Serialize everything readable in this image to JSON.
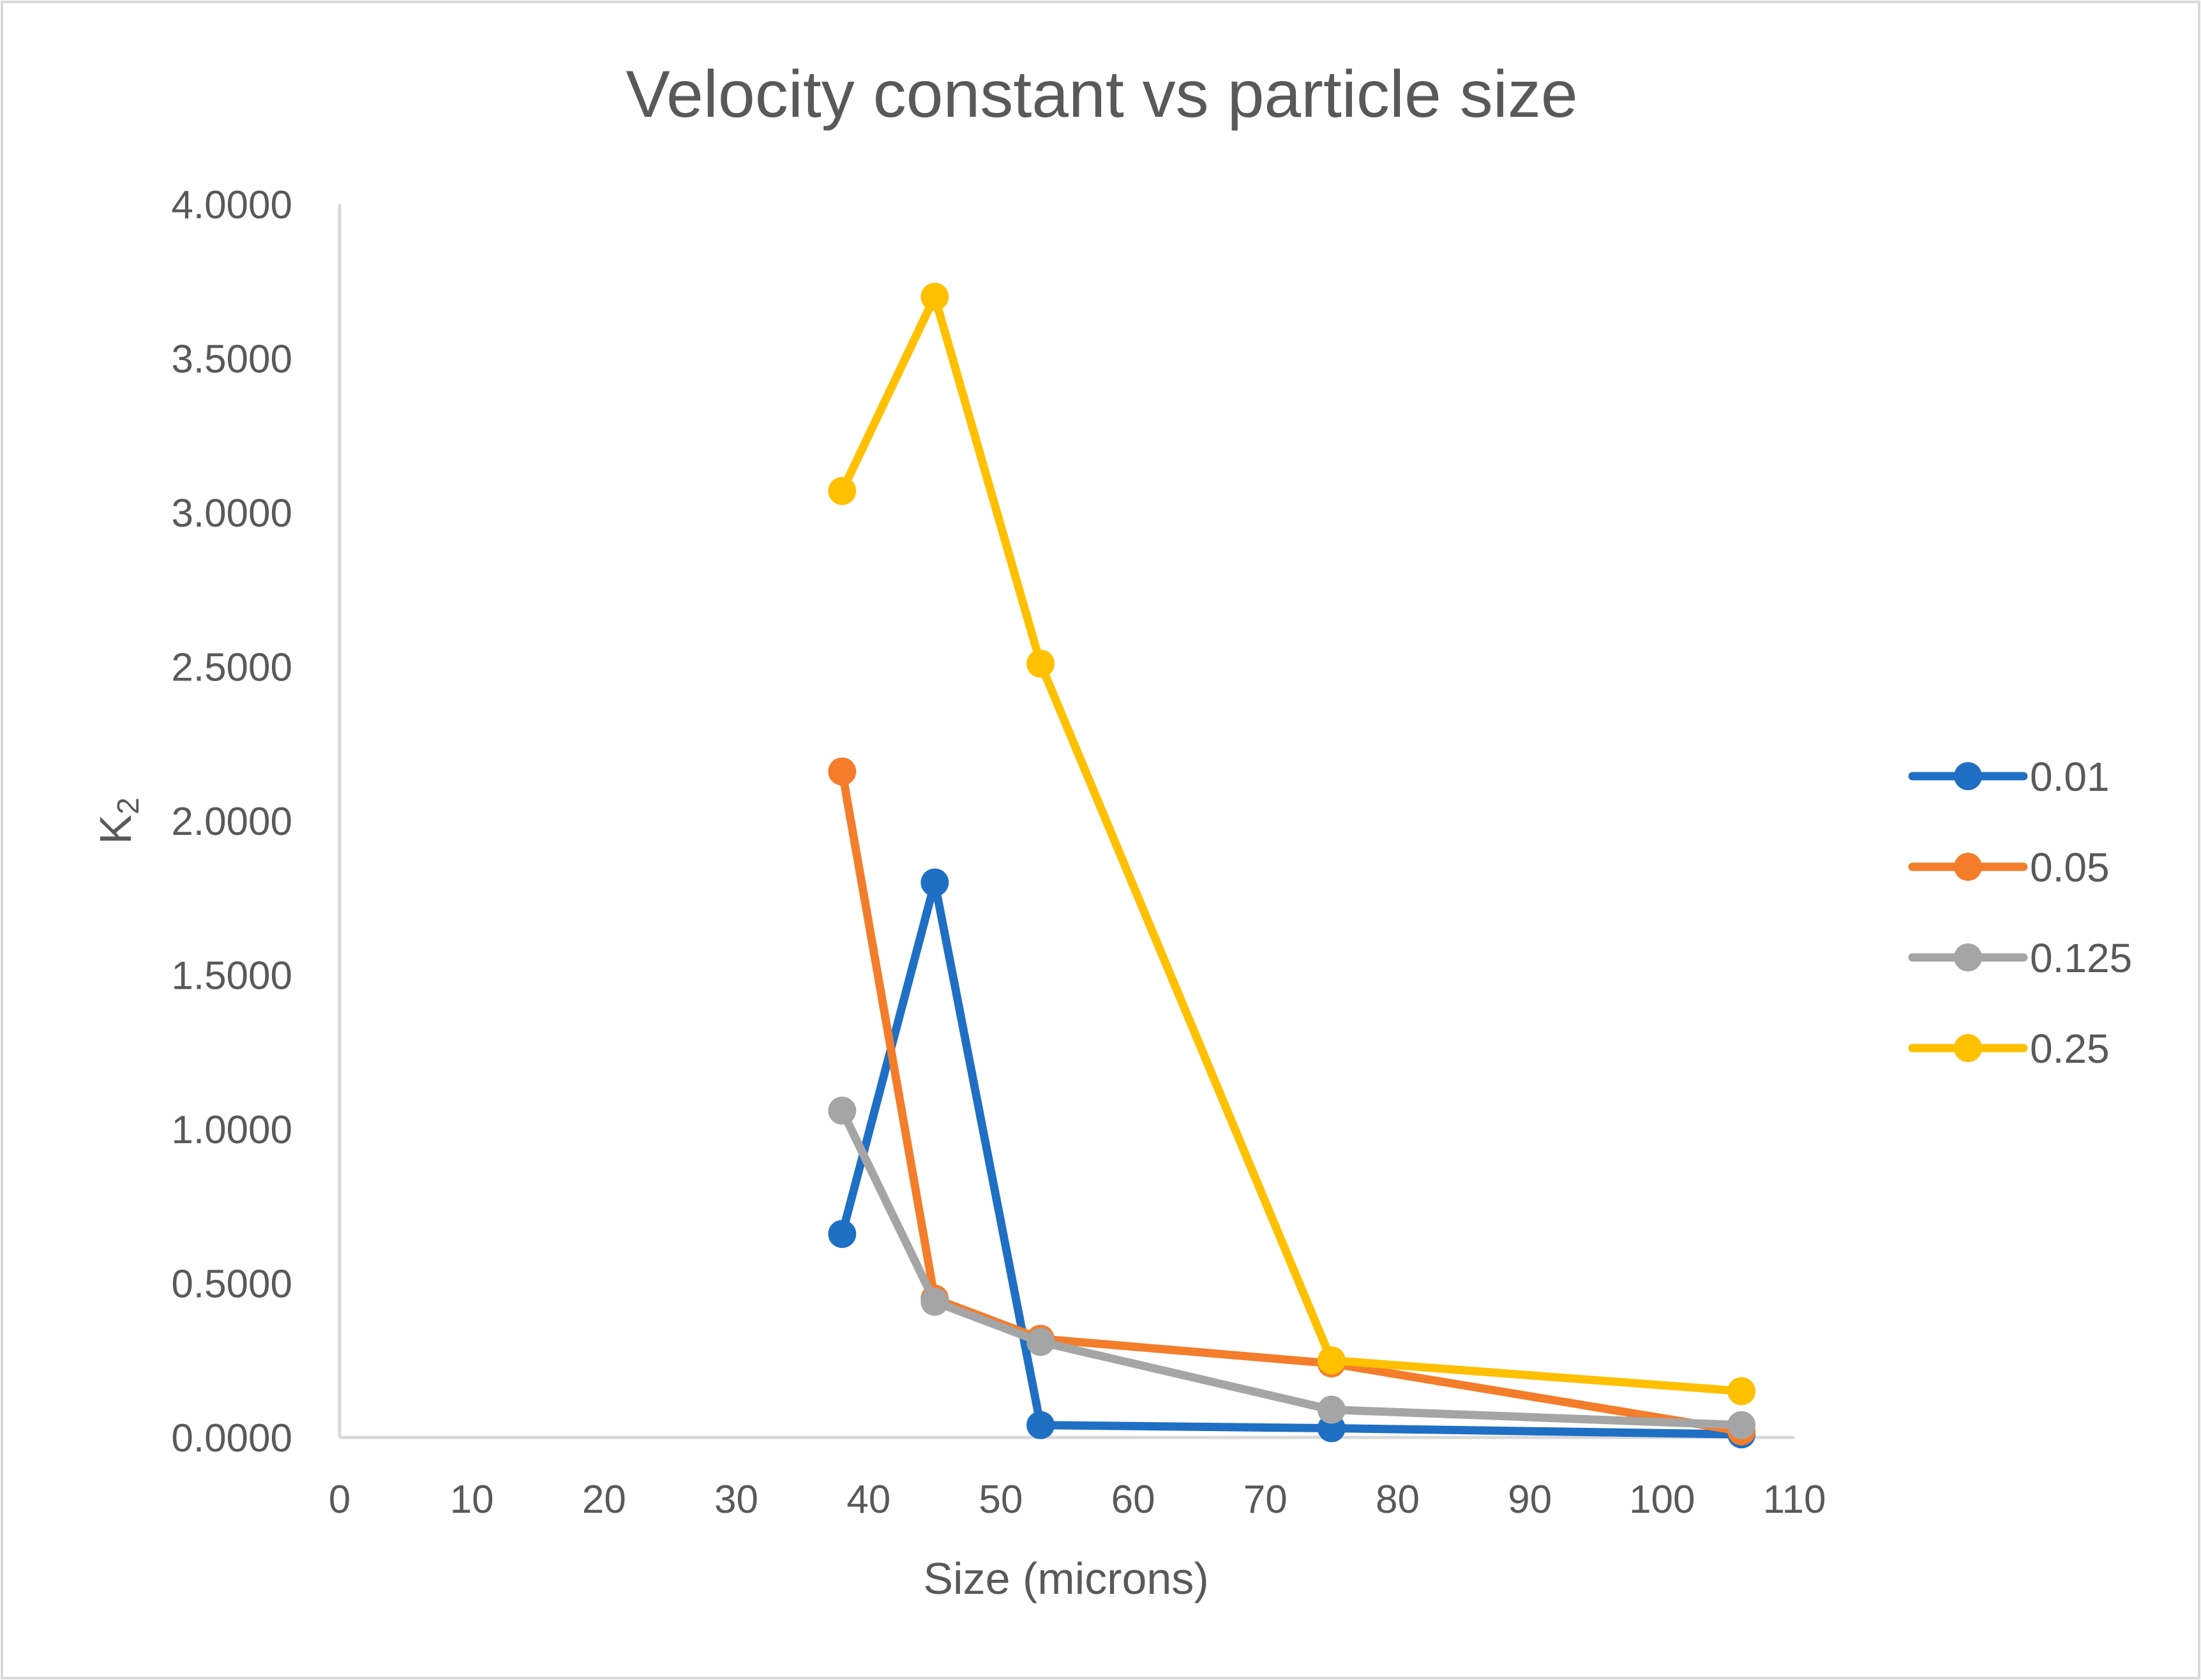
{
  "chart_data": {
    "type": "line",
    "title": "Velocity constant vs particle size",
    "xlabel": "Size (microns)",
    "ylabel_main": "K",
    "ylabel_sub": "2",
    "xlim": [
      0,
      110
    ],
    "ylim": [
      0,
      4
    ],
    "x_ticks": [
      "0",
      "10",
      "20",
      "30",
      "40",
      "50",
      "60",
      "70",
      "80",
      "90",
      "100",
      "110"
    ],
    "y_ticks": [
      "0.0000",
      "0.5000",
      "1.0000",
      "1.5000",
      "2.0000",
      "2.5000",
      "3.0000",
      "3.5000",
      "4.0000"
    ],
    "grid": false,
    "legend_position": "right",
    "x": [
      38,
      45,
      53,
      75,
      106
    ],
    "series": [
      {
        "name": "0.01",
        "color": "#1F6FC5",
        "values": [
          0.66,
          1.8,
          0.04,
          0.03,
          0.01
        ]
      },
      {
        "name": "0.05",
        "color": "#F47D2B",
        "values": [
          2.16,
          0.45,
          0.32,
          0.24,
          0.02
        ]
      },
      {
        "name": "0.125",
        "color": "#A5A5A5",
        "values": [
          1.06,
          0.44,
          0.31,
          0.09,
          0.04
        ]
      },
      {
        "name": "0.25",
        "color": "#FFC000",
        "values": [
          3.07,
          3.7,
          2.51,
          0.25,
          0.15
        ]
      }
    ],
    "axis_color": "#D9D9D9",
    "text_color": "#595959",
    "frame_color": "#D9D9D9"
  }
}
